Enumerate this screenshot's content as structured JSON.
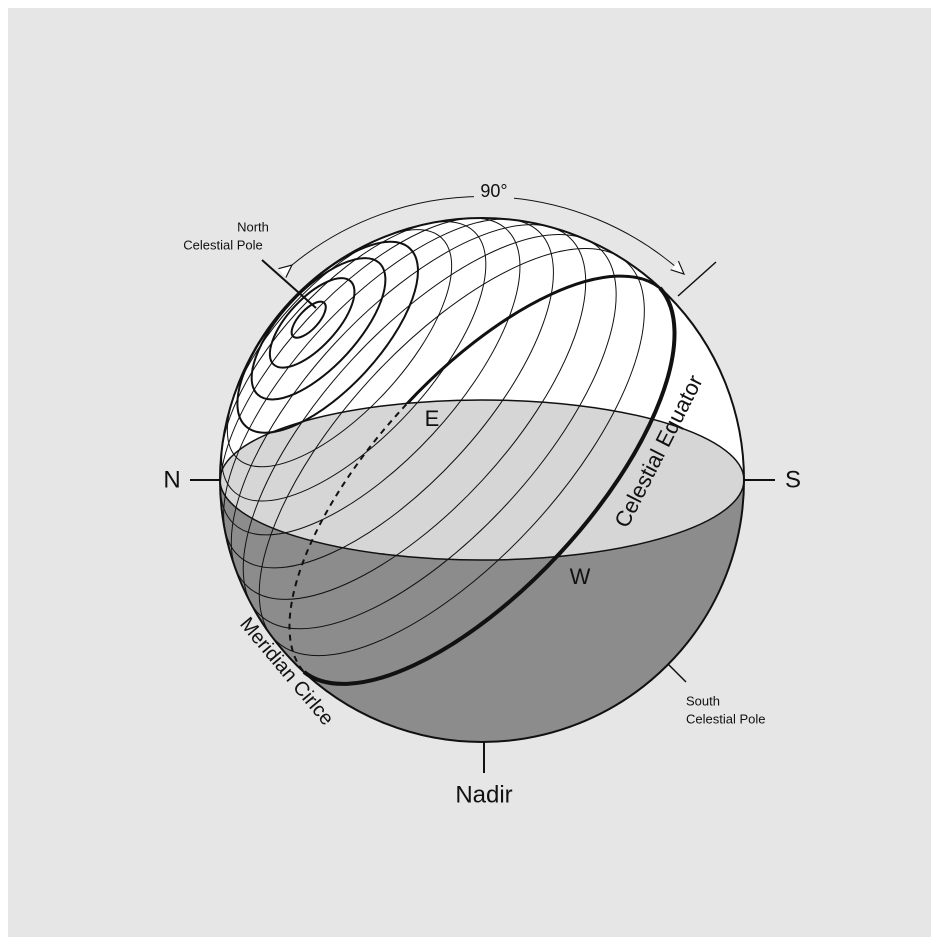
{
  "angle_label": "90°",
  "north_celestial_pole": [
    "North",
    "Celestial Pole"
  ],
  "south_celestial_pole": [
    "South",
    "Celestial Pole"
  ],
  "directions": {
    "north": "N",
    "south": "S",
    "east": "E",
    "west": "W"
  },
  "celestial_equator": "Celestial Equator",
  "meridian_circle": "Meridian Cirlce",
  "nadir": "Nadir"
}
